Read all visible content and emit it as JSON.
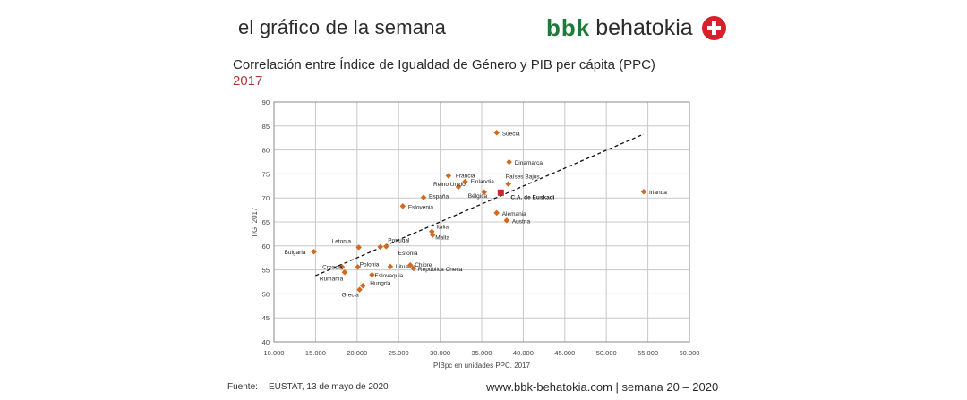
{
  "header": {
    "title": "el gráfico de la semana",
    "logo_bbk": "bbk",
    "logo_name": "behatokia"
  },
  "chart_title": "Correlación entre Índice de Igualdad de Género y PIB per cápita (PPC)",
  "chart_year": "2017",
  "footer": {
    "source_label": "Fuente:",
    "source": "EUSTAT, 13 de mayo de 2020",
    "url": "www.bbk-behatokia.com",
    "week": "semana 20 – 2020"
  },
  "colors": {
    "accent": "#b3363a",
    "brand_green": "#1f7a3a",
    "point": "#d2691e",
    "highlight": "#d6202b"
  },
  "chart_data": {
    "type": "scatter",
    "title": "Correlación entre Índice de Igualdad de Género y PIB per cápita (PPC)",
    "xlabel": "PIBpc en unidades PPC. 2017",
    "ylabel": "IIG. 2017",
    "xlim": [
      10000,
      60000
    ],
    "ylim": [
      40,
      90
    ],
    "xticks": [
      10000,
      15000,
      20000,
      25000,
      30000,
      35000,
      40000,
      45000,
      50000,
      55000,
      60000
    ],
    "xtick_labels": [
      "10.000",
      "15.000",
      "20.000",
      "25.000",
      "30.000",
      "35.000",
      "40.000",
      "45.000",
      "50.000",
      "55.000",
      "60.000"
    ],
    "yticks": [
      40,
      45,
      50,
      55,
      60,
      65,
      70,
      75,
      80,
      85,
      90
    ],
    "ytick_labels": [
      "40",
      "45",
      "50",
      "55",
      "60",
      "65",
      "70",
      "75",
      "80",
      "85",
      "90"
    ],
    "grid": true,
    "trendline": {
      "x": [
        15000,
        54500
      ],
      "y": [
        53.8,
        83.3
      ],
      "style": "dashed"
    },
    "points": [
      {
        "label": "Suecia",
        "x": 36800,
        "y": 83.6
      },
      {
        "label": "Dinamarca",
        "x": 38300,
        "y": 77.5
      },
      {
        "label": "Francia",
        "x": 31000,
        "y": 74.6
      },
      {
        "label": "Finlandia",
        "x": 33000,
        "y": 73.4
      },
      {
        "label": "Países Bajos",
        "x": 38200,
        "y": 72.9
      },
      {
        "label": "Reino Unido",
        "x": 32200,
        "y": 72.3
      },
      {
        "label": "Bélgica",
        "x": 35300,
        "y": 71.2
      },
      {
        "label": "C.A. de Euskadi",
        "x": 37300,
        "y": 71.1,
        "highlight": true
      },
      {
        "label": "España",
        "x": 28000,
        "y": 70.1
      },
      {
        "label": "Irlanda",
        "x": 54500,
        "y": 71.3
      },
      {
        "label": "Eslovenia",
        "x": 25500,
        "y": 68.3
      },
      {
        "label": "Alemania",
        "x": 36800,
        "y": 66.9
      },
      {
        "label": "Austria",
        "x": 38000,
        "y": 65.3
      },
      {
        "label": "Italia",
        "x": 29000,
        "y": 63.0
      },
      {
        "label": "Malta",
        "x": 29100,
        "y": 62.3
      },
      {
        "label": "Portugal",
        "x": 23500,
        "y": 59.9
      },
      {
        "label": "Letonia",
        "x": 20200,
        "y": 59.7
      },
      {
        "label": "Bulgaria",
        "x": 14800,
        "y": 58.8
      },
      {
        "label": "Estonia",
        "x": 22800,
        "y": 59.8
      },
      {
        "label": "Croacia",
        "x": 18200,
        "y": 55.6
      },
      {
        "label": "Rumanía",
        "x": 18500,
        "y": 54.5
      },
      {
        "label": "Polonia",
        "x": 20100,
        "y": 55.6
      },
      {
        "label": "Lituania",
        "x": 24000,
        "y": 55.7
      },
      {
        "label": "Chipre",
        "x": 26400,
        "y": 56.0
      },
      {
        "label": "República Checa",
        "x": 26800,
        "y": 55.3
      },
      {
        "label": "Eslovaquia",
        "x": 21800,
        "y": 54.0
      },
      {
        "label": "Hungría",
        "x": 20700,
        "y": 51.7
      },
      {
        "label": "Grecia",
        "x": 20300,
        "y": 50.9
      }
    ]
  }
}
